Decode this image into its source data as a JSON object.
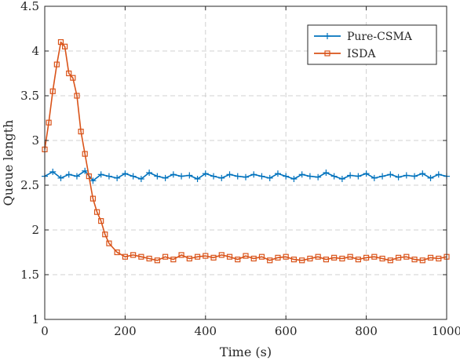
{
  "chart_data": {
    "type": "line",
    "xlabel": "Time (s)",
    "ylabel": "Queue length",
    "xlim": [
      0,
      1000
    ],
    "ylim": [
      1,
      4.5
    ],
    "xticks": [
      0,
      200,
      400,
      600,
      800,
      1000
    ],
    "yticks": [
      1,
      1.5,
      2,
      2.5,
      3,
      3.5,
      4,
      4.5
    ],
    "ytick_labels": [
      "1",
      "1.5",
      "2",
      "2.5",
      "3",
      "3.5",
      "4",
      "4.5"
    ],
    "grid": true,
    "legend_position": "top-right",
    "series": [
      {
        "name": "Pure-CSMA",
        "color": "#0072bd",
        "marker": "plus",
        "x": [
          0,
          20,
          40,
          60,
          80,
          100,
          120,
          140,
          160,
          180,
          200,
          220,
          240,
          260,
          280,
          300,
          320,
          340,
          360,
          380,
          400,
          420,
          440,
          460,
          480,
          500,
          520,
          540,
          560,
          580,
          600,
          620,
          640,
          660,
          680,
          700,
          720,
          740,
          760,
          780,
          800,
          820,
          840,
          860,
          880,
          900,
          920,
          940,
          960,
          980,
          1000
        ],
        "y": [
          2.6,
          2.65,
          2.58,
          2.62,
          2.6,
          2.66,
          2.55,
          2.62,
          2.6,
          2.58,
          2.63,
          2.6,
          2.57,
          2.64,
          2.6,
          2.58,
          2.62,
          2.6,
          2.61,
          2.57,
          2.63,
          2.6,
          2.58,
          2.62,
          2.6,
          2.59,
          2.62,
          2.6,
          2.58,
          2.63,
          2.6,
          2.57,
          2.62,
          2.6,
          2.59,
          2.64,
          2.6,
          2.57,
          2.61,
          2.6,
          2.63,
          2.58,
          2.6,
          2.62,
          2.59,
          2.61,
          2.6,
          2.63,
          2.58,
          2.62,
          2.6
        ]
      },
      {
        "name": "ISDA",
        "color": "#d95319",
        "marker": "square",
        "x": [
          0,
          10,
          20,
          30,
          40,
          50,
          60,
          70,
          80,
          90,
          100,
          110,
          120,
          130,
          140,
          150,
          160,
          180,
          200,
          220,
          240,
          260,
          280,
          300,
          320,
          340,
          360,
          380,
          400,
          420,
          440,
          460,
          480,
          500,
          520,
          540,
          560,
          580,
          600,
          620,
          640,
          660,
          680,
          700,
          720,
          740,
          760,
          780,
          800,
          820,
          840,
          860,
          880,
          900,
          920,
          940,
          960,
          980,
          1000
        ],
        "y": [
          2.9,
          3.2,
          3.55,
          3.85,
          4.1,
          4.05,
          3.75,
          3.7,
          3.5,
          3.1,
          2.85,
          2.6,
          2.35,
          2.2,
          2.1,
          1.95,
          1.85,
          1.75,
          1.7,
          1.72,
          1.7,
          1.68,
          1.66,
          1.7,
          1.67,
          1.72,
          1.68,
          1.7,
          1.71,
          1.69,
          1.72,
          1.7,
          1.67,
          1.71,
          1.68,
          1.7,
          1.66,
          1.69,
          1.7,
          1.67,
          1.66,
          1.68,
          1.7,
          1.67,
          1.69,
          1.68,
          1.7,
          1.67,
          1.69,
          1.7,
          1.68,
          1.66,
          1.69,
          1.7,
          1.67,
          1.66,
          1.69,
          1.68,
          1.7
        ]
      }
    ]
  }
}
